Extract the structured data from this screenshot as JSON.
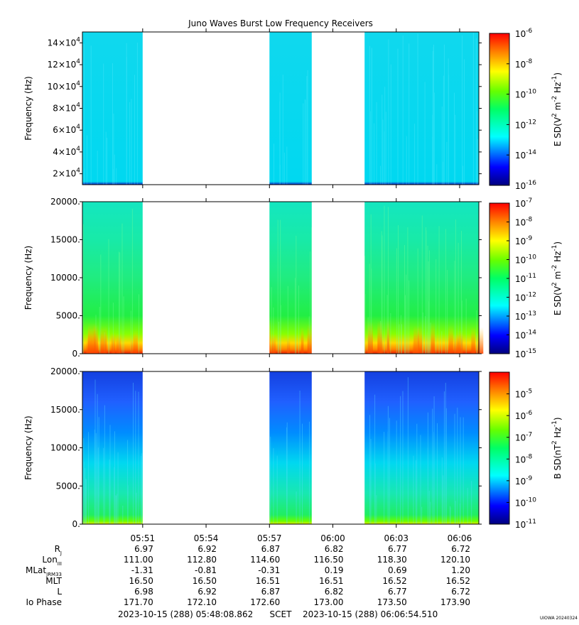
{
  "chart_data": {
    "type": "heatmap",
    "title": "Juno Waves Burst Low Frequency Receivers",
    "gaps": [
      [
        "05:51",
        "05:57"
      ],
      [
        "05:59:00",
        "06:01:30"
      ]
    ],
    "panels": [
      {
        "name": "E-high",
        "ylabel": "Frequency (Hz)",
        "ylim": [
          10000,
          150000
        ],
        "yticks": [
          {
            "mant": "2×10",
            "exp": "4",
            "v": 20000
          },
          {
            "mant": "4×10",
            "exp": "4",
            "v": 40000
          },
          {
            "mant": "6×10",
            "exp": "4",
            "v": 60000
          },
          {
            "mant": "8×10",
            "exp": "4",
            "v": 80000
          },
          {
            "mant": "10×10",
            "exp": "4",
            "v": 100000
          },
          {
            "mant": "12×10",
            "exp": "4",
            "v": 120000
          },
          {
            "mant": "14×10",
            "exp": "4",
            "v": 140000
          }
        ],
        "colorbar": {
          "label": "E SD(V2 m-2 Hz-1)",
          "log": true,
          "range_exp": [
            -16,
            -6
          ],
          "ticks": [
            -6,
            -8,
            -10,
            -12,
            -14,
            -16
          ]
        }
      },
      {
        "name": "E-low",
        "ylabel": "Frequency (Hz)",
        "ylim": [
          0,
          20000
        ],
        "yticks": [
          {
            "label": "0.",
            "v": 0
          },
          {
            "label": "5000.",
            "v": 5000
          },
          {
            "label": "10000.",
            "v": 10000
          },
          {
            "label": "15000.",
            "v": 15000
          },
          {
            "label": "20000.",
            "v": 20000
          }
        ],
        "colorbar": {
          "label": "E SD(V2 m-2 Hz-1)",
          "log": true,
          "range_exp": [
            -15,
            -7
          ],
          "ticks": [
            -7,
            -8,
            -9,
            -10,
            -11,
            -12,
            -13,
            -14,
            -15
          ]
        }
      },
      {
        "name": "B",
        "ylabel": "Frequency (Hz)",
        "ylim": [
          0,
          20000
        ],
        "yticks": [
          {
            "label": "0.",
            "v": 0
          },
          {
            "label": "5000.",
            "v": 5000
          },
          {
            "label": "10000.",
            "v": 10000
          },
          {
            "label": "15000.",
            "v": 15000
          },
          {
            "label": "20000.",
            "v": 20000
          }
        ],
        "colorbar": {
          "label": "B SD(nT2 Hz-1)",
          "log": true,
          "range_exp": [
            -11,
            -4
          ],
          "ticks": [
            -5,
            -6,
            -7,
            -8,
            -9,
            -10,
            -11
          ]
        }
      }
    ],
    "ephemeris": {
      "time_labels": [
        "05:51",
        "05:54",
        "05:57",
        "06:00",
        "06:03",
        "06:06"
      ],
      "rows": [
        {
          "label": "R",
          "sub": "J",
          "values": [
            "6.97",
            "6.92",
            "6.87",
            "6.82",
            "6.77",
            "6.72"
          ]
        },
        {
          "label": "Lon",
          "sub": "III",
          "values": [
            "111.00",
            "112.80",
            "114.60",
            "116.50",
            "118.30",
            "120.10"
          ]
        },
        {
          "label": "MLat",
          "sub": "JRM33",
          "values": [
            "-1.31",
            "-0.81",
            "-0.31",
            "0.19",
            "0.69",
            "1.20"
          ]
        },
        {
          "label": "MLT",
          "sub": "",
          "values": [
            "16.50",
            "16.50",
            "16.51",
            "16.51",
            "16.52",
            "16.52"
          ]
        },
        {
          "label": "L",
          "sub": "",
          "values": [
            "6.98",
            "6.92",
            "6.87",
            "6.82",
            "6.77",
            "6.72"
          ]
        },
        {
          "label": "Io Phase",
          "sub": "",
          "values": [
            "171.70",
            "172.10",
            "172.60",
            "173.00",
            "173.50",
            "173.90"
          ]
        }
      ]
    },
    "time_range": {
      "start": "2023-10-15 (288) 05:48:08.862",
      "mid": "SCET",
      "end": "2023-10-15 (288) 06:06:54.510"
    },
    "credit": "UIOWA 20240324"
  }
}
